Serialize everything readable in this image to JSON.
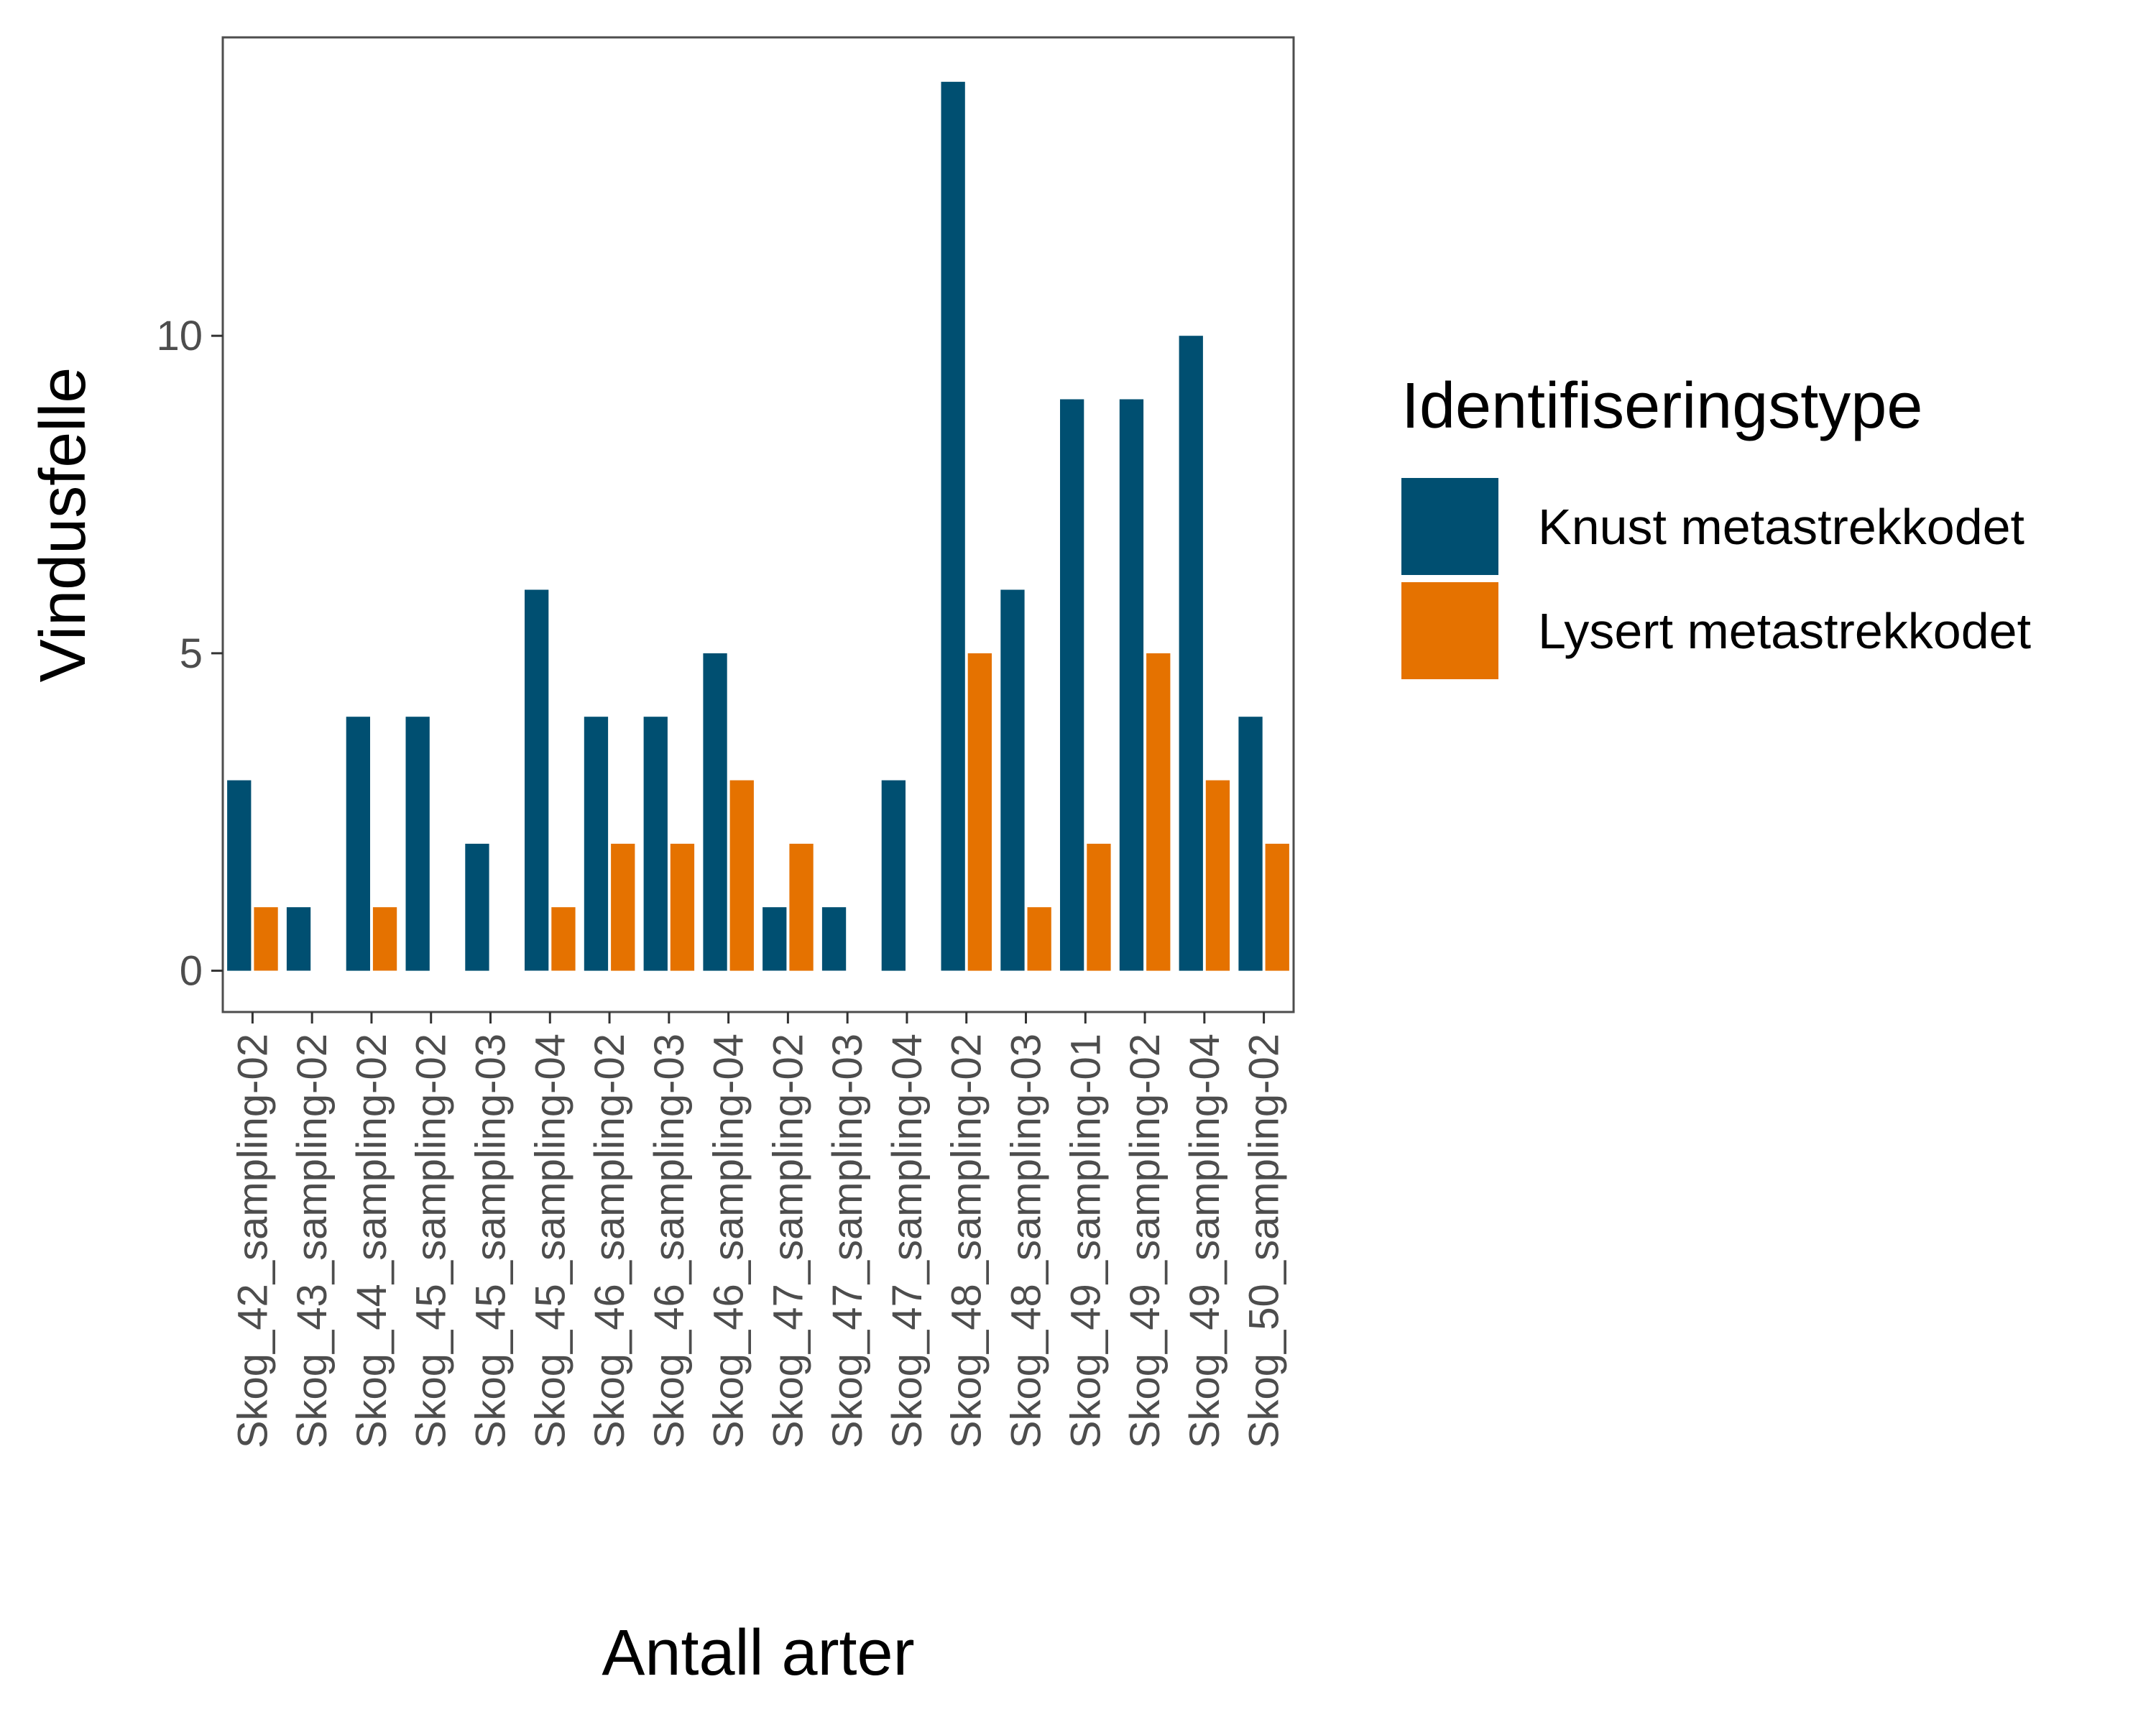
{
  "chart_data": {
    "type": "bar",
    "xlabel": "Antall arter",
    "ylabel": "Vindusfelle",
    "ylim": [
      -0.65,
      14.7
    ],
    "yticks": [
      0,
      5,
      10
    ],
    "categories": [
      "Skog_42_sampling-02",
      "Skog_43_sampling-02",
      "Skog_44_sampling-02",
      "Skog_45_sampling-02",
      "Skog_45_sampling-03",
      "Skog_45_sampling-04",
      "Skog_46_sampling-02",
      "Skog_46_sampling-03",
      "Skog_46_sampling-04",
      "Skog_47_sampling-02",
      "Skog_47_sampling-03",
      "Skog_47_sampling-04",
      "Skog_48_sampling-02",
      "Skog_48_sampling-03",
      "Skog_49_sampling-01",
      "Skog_49_sampling-02",
      "Skog_49_sampling-04",
      "Skog_50_sampling-02"
    ],
    "series": [
      {
        "name": "Knust metastrekkodet",
        "color": "#004f71",
        "values": [
          3,
          1,
          4,
          4,
          2,
          6,
          4,
          4,
          5,
          1,
          1,
          3,
          14,
          6,
          9,
          9,
          10,
          4
        ]
      },
      {
        "name": "Lysert metastrekkodet",
        "color": "#e57200",
        "values": [
          1,
          0,
          1,
          0,
          0,
          1,
          2,
          2,
          3,
          2,
          0,
          0,
          5,
          1,
          2,
          5,
          3,
          2
        ]
      }
    ],
    "legend": {
      "title": "Identifiseringstype",
      "position": "right"
    },
    "grid": false
  }
}
